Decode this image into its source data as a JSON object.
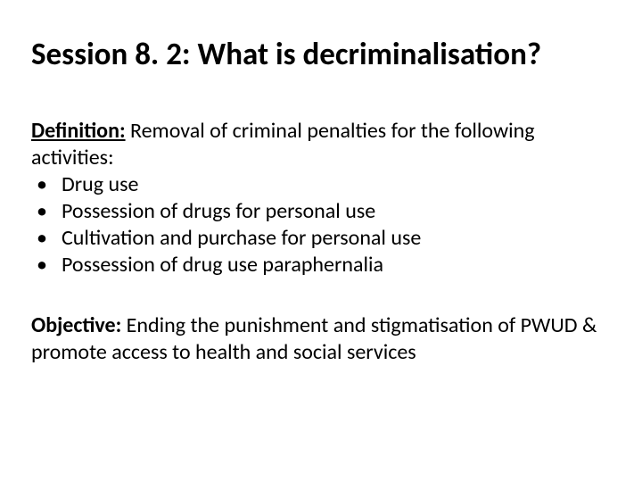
{
  "title": "Session 8. 2: What is decriminalisation?",
  "definition": {
    "label": "Definition:",
    "text": " Removal of criminal penalties for the following activities:",
    "bullets": [
      "Drug use",
      "Possession of drugs for personal use",
      "Cultivation and purchase for personal use",
      "Possession of drug use paraphernalia"
    ]
  },
  "objective": {
    "label": "Objective:",
    "text": " Ending the punishment and stigmatisation of PWUD & promote access to health and social services"
  },
  "colors": {
    "background": "#ffffff",
    "text": "#000000"
  },
  "typography": {
    "title_fontsize": 35,
    "body_fontsize": 24,
    "font_family": "Calibri"
  }
}
